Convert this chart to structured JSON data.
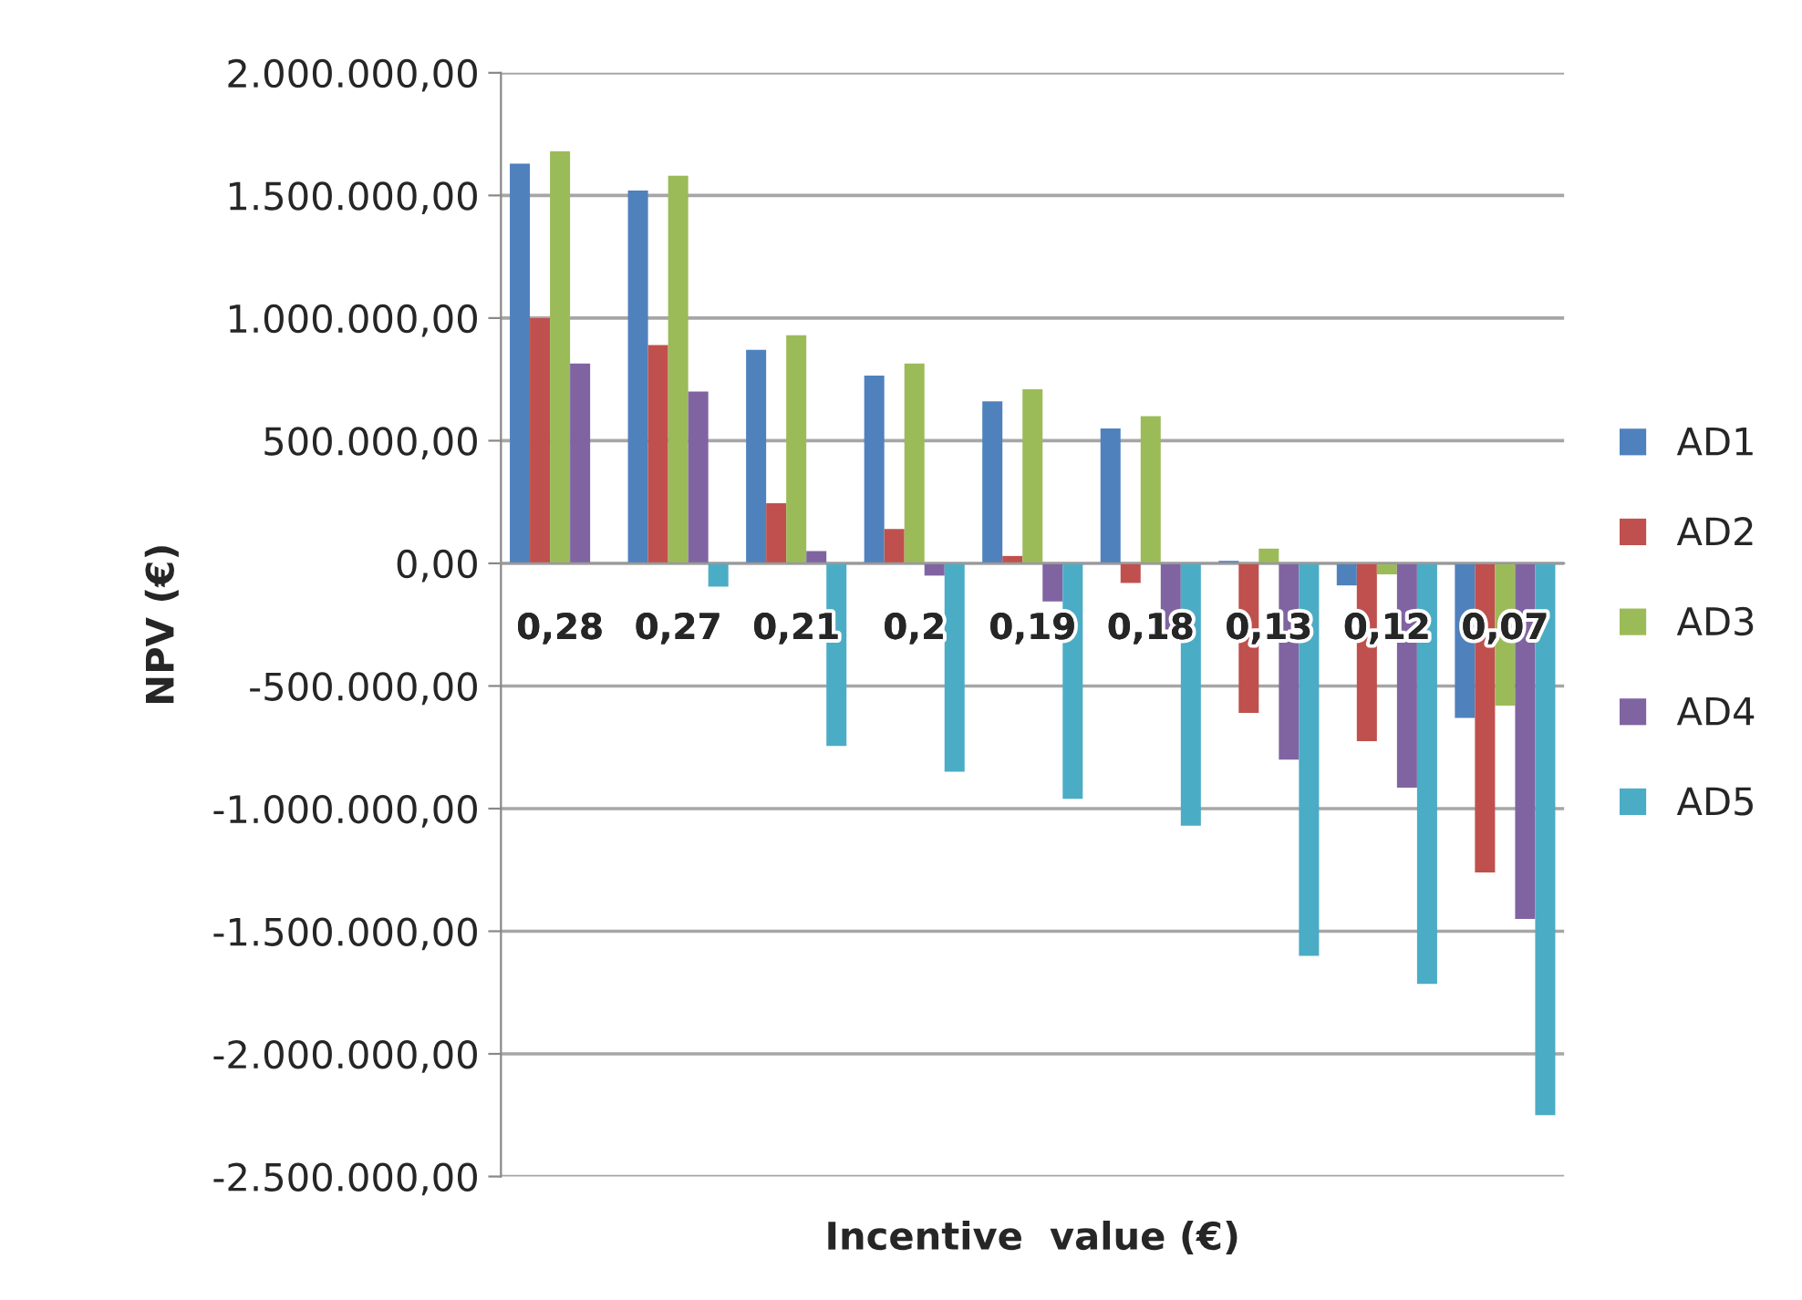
{
  "chart_data": {
    "type": "bar",
    "xlabel": "Incentive  value (€)",
    "ylabel": "NPV (€)",
    "categories": [
      "0,28",
      "0,27",
      "0,21",
      "0,2",
      "0,19",
      "0,18",
      "0,13",
      "0,12",
      "0,07"
    ],
    "series": [
      {
        "name": "AD1",
        "color": "#4f81bd",
        "values": [
          1630000,
          1520000,
          870000,
          765000,
          660000,
          550000,
          10000,
          -90000,
          -630000
        ]
      },
      {
        "name": "AD2",
        "color": "#c0504d",
        "values": [
          1000000,
          890000,
          245000,
          140000,
          30000,
          -80000,
          -610000,
          -725000,
          -1260000
        ]
      },
      {
        "name": "AD3",
        "color": "#9bbb59",
        "values": [
          1680000,
          1580000,
          930000,
          815000,
          710000,
          600000,
          60000,
          -45000,
          -580000
        ]
      },
      {
        "name": "AD4",
        "color": "#8064a2",
        "values": [
          815000,
          700000,
          50000,
          -50000,
          -155000,
          -270000,
          -800000,
          -915000,
          -1450000
        ]
      },
      {
        "name": "AD5",
        "color": "#4bacc6",
        "values": [
          0,
          -95000,
          -745000,
          -850000,
          -960000,
          -1070000,
          -1600000,
          -1715000,
          -2250000
        ]
      }
    ],
    "ylim": [
      -2500000,
      2000000
    ],
    "yticks": [
      {
        "value": -2500000,
        "label": "-2.500.000,00"
      },
      {
        "value": -2000000,
        "label": "-2.000.000,00"
      },
      {
        "value": -1500000,
        "label": "-1.500.000,00"
      },
      {
        "value": -1000000,
        "label": "-1.000.000,00"
      },
      {
        "value": -500000,
        "label": "-500.000,00"
      },
      {
        "value": 0,
        "label": "0,00"
      },
      {
        "value": 500000,
        "label": "500.000,00"
      },
      {
        "value": 1000000,
        "label": "1.000.000,00"
      },
      {
        "value": 1500000,
        "label": "1.500.000,00"
      },
      {
        "value": 2000000,
        "label": "2.000.000,00"
      }
    ],
    "grid": "y",
    "legend": "right"
  }
}
